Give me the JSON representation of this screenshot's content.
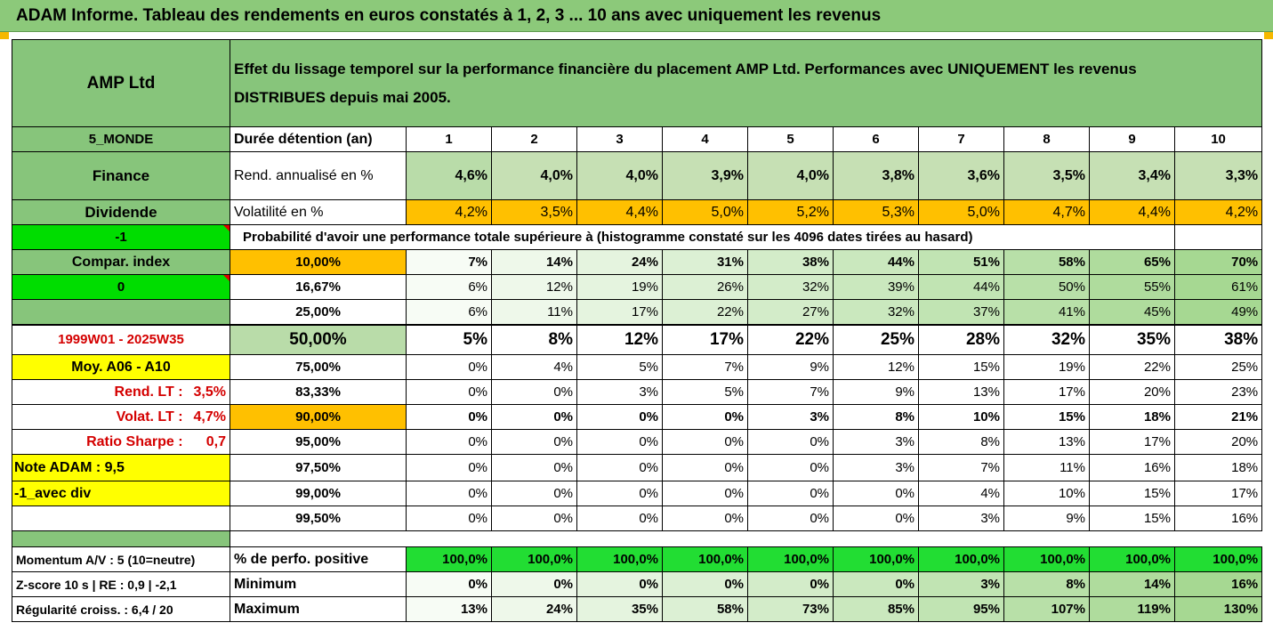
{
  "header": {
    "title": "ADAM Informe. Tableau des rendements en euros constatés à 1, 2, 3 ... 10 ans avec uniquement les revenus"
  },
  "panel": {
    "name": "AMP Ltd",
    "description_line1": "Effet du lissage temporel sur la performance financière du placement AMP Ltd. Performances avec UNIQUEMENT les revenus",
    "description_line2": "DISTRIBUES depuis mai 2005.",
    "zone": "5_MONDE",
    "sector": "Finance",
    "type": "Dividende",
    "flag1": "-1",
    "compar_index": "Compar. index",
    "flag2": "0",
    "period": "1999W01 - 2025W35",
    "moy": "Moy. A06 - A10",
    "rend_lt_label": "Rend. LT :",
    "rend_lt_value": "3,5%",
    "volat_lt_label": "Volat. LT :",
    "volat_lt_value": "4,7%",
    "sharpe_label": "Ratio Sharpe :",
    "sharpe_value": "0,7",
    "note_adam": "Note ADAM : 9,5",
    "avec_div": "-1_avec div",
    "momentum": "Momentum A/V : 5 (10=neutre)",
    "zscore": "Z-score 10 s | RE : 0,9 | -2,1",
    "regularite": "Régularité croiss. : 6,4 / 20"
  },
  "table": {
    "duration_label": "Durée détention (an)",
    "years": [
      "1",
      "2",
      "3",
      "4",
      "5",
      "6",
      "7",
      "8",
      "9",
      "10"
    ],
    "rend_label": "Rend. annualisé en %",
    "rend": [
      "4,6%",
      "4,0%",
      "4,0%",
      "3,9%",
      "4,0%",
      "3,8%",
      "3,6%",
      "3,5%",
      "3,4%",
      "3,3%"
    ],
    "vol_label": "Volatilité en %",
    "vol": [
      "4,2%",
      "3,5%",
      "4,4%",
      "5,0%",
      "5,2%",
      "5,3%",
      "5,0%",
      "4,7%",
      "4,4%",
      "4,2%"
    ],
    "prob_label": "Probabilité d'avoir une performance totale supérieure à (histogramme constaté sur les 4096 dates tirées au hasard)",
    "prob_rows": [
      {
        "thr": "10,00%",
        "vals": [
          "7%",
          "14%",
          "24%",
          "31%",
          "38%",
          "44%",
          "51%",
          "58%",
          "65%",
          "70%"
        ]
      },
      {
        "thr": "16,67%",
        "vals": [
          "6%",
          "12%",
          "19%",
          "26%",
          "32%",
          "39%",
          "44%",
          "50%",
          "55%",
          "61%"
        ]
      },
      {
        "thr": "25,00%",
        "vals": [
          "6%",
          "11%",
          "17%",
          "22%",
          "27%",
          "32%",
          "37%",
          "41%",
          "45%",
          "49%"
        ]
      },
      {
        "thr": "50,00%",
        "vals": [
          "5%",
          "8%",
          "12%",
          "17%",
          "22%",
          "25%",
          "28%",
          "32%",
          "35%",
          "38%"
        ]
      },
      {
        "thr": "75,00%",
        "vals": [
          "0%",
          "4%",
          "5%",
          "7%",
          "9%",
          "12%",
          "15%",
          "19%",
          "22%",
          "25%"
        ]
      },
      {
        "thr": "83,33%",
        "vals": [
          "0%",
          "0%",
          "3%",
          "5%",
          "7%",
          "9%",
          "13%",
          "17%",
          "20%",
          "23%"
        ]
      },
      {
        "thr": "90,00%",
        "vals": [
          "0%",
          "0%",
          "0%",
          "0%",
          "3%",
          "8%",
          "10%",
          "15%",
          "18%",
          "21%"
        ]
      },
      {
        "thr": "95,00%",
        "vals": [
          "0%",
          "0%",
          "0%",
          "0%",
          "0%",
          "3%",
          "8%",
          "13%",
          "17%",
          "20%"
        ]
      },
      {
        "thr": "97,50%",
        "vals": [
          "0%",
          "0%",
          "0%",
          "0%",
          "0%",
          "3%",
          "7%",
          "11%",
          "16%",
          "18%"
        ]
      },
      {
        "thr": "99,00%",
        "vals": [
          "0%",
          "0%",
          "0%",
          "0%",
          "0%",
          "0%",
          "4%",
          "10%",
          "15%",
          "17%"
        ]
      },
      {
        "thr": "99,50%",
        "vals": [
          "0%",
          "0%",
          "0%",
          "0%",
          "0%",
          "0%",
          "3%",
          "9%",
          "15%",
          "16%"
        ]
      }
    ],
    "pos_label": "% de perfo. positive",
    "pos": [
      "100,0%",
      "100,0%",
      "100,0%",
      "100,0%",
      "100,0%",
      "100,0%",
      "100,0%",
      "100,0%",
      "100,0%",
      "100,0%"
    ],
    "min_label": "Minimum",
    "min": [
      "0%",
      "0%",
      "0%",
      "0%",
      "0%",
      "0%",
      "3%",
      "8%",
      "14%",
      "16%"
    ],
    "max_label": "Maximum",
    "max": [
      "13%",
      "24%",
      "35%",
      "58%",
      "73%",
      "85%",
      "95%",
      "107%",
      "119%",
      "130%"
    ]
  },
  "colors": {
    "header_green": "#8cc97a",
    "label_green": "#87c57b",
    "orange": "#ffc000",
    "bright_green": "#22dd33",
    "yellow": "#ffff00",
    "red_text": "#d40000"
  }
}
